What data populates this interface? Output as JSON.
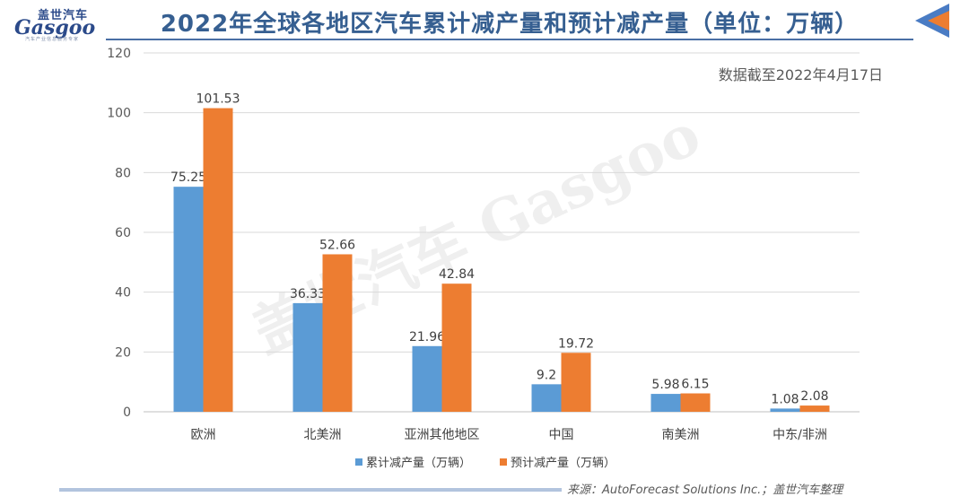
{
  "header": {
    "logo_cn": "盖世汽车",
    "logo_en": "Gasgoo",
    "logo_tagline": "汽车产业信息服务专家",
    "title": "2022年全球各地区汽车累计减产量和预计减产量（单位：万辆）"
  },
  "note": "数据截至2022年4月17日",
  "source": "来源：AutoForecast Solutions Inc.；盖世汽车整理",
  "watermark": "盖世汽车 Gasgoo",
  "colors": {
    "series1": "#5b9bd5",
    "series2": "#ed7d31",
    "title": "#365f91",
    "grid": "#d9d9d9",
    "axis_text": "#595959"
  },
  "chart_data": {
    "type": "bar",
    "categories": [
      "欧洲",
      "北美洲",
      "亚洲其他地区",
      "中国",
      "南美洲",
      "中东/非洲"
    ],
    "series": [
      {
        "name": "累计减产量（万辆）",
        "values": [
          75.25,
          36.33,
          21.96,
          9.2,
          5.98,
          1.08
        ],
        "labels": [
          "75.25",
          "36.33",
          "21.96",
          "9.2",
          "5.98",
          "1.08"
        ]
      },
      {
        "name": "预计减产量（万辆）",
        "values": [
          101.53,
          52.66,
          42.84,
          19.72,
          6.15,
          2.08
        ],
        "labels": [
          "101.53",
          "52.66",
          "42.84",
          "19.72",
          "6.15",
          "2.08"
        ]
      }
    ],
    "yticks": [
      "0",
      "20",
      "40",
      "60",
      "80",
      "100",
      "120"
    ],
    "ylim": [
      0,
      120
    ],
    "grid": true,
    "legend_position": "bottom"
  }
}
